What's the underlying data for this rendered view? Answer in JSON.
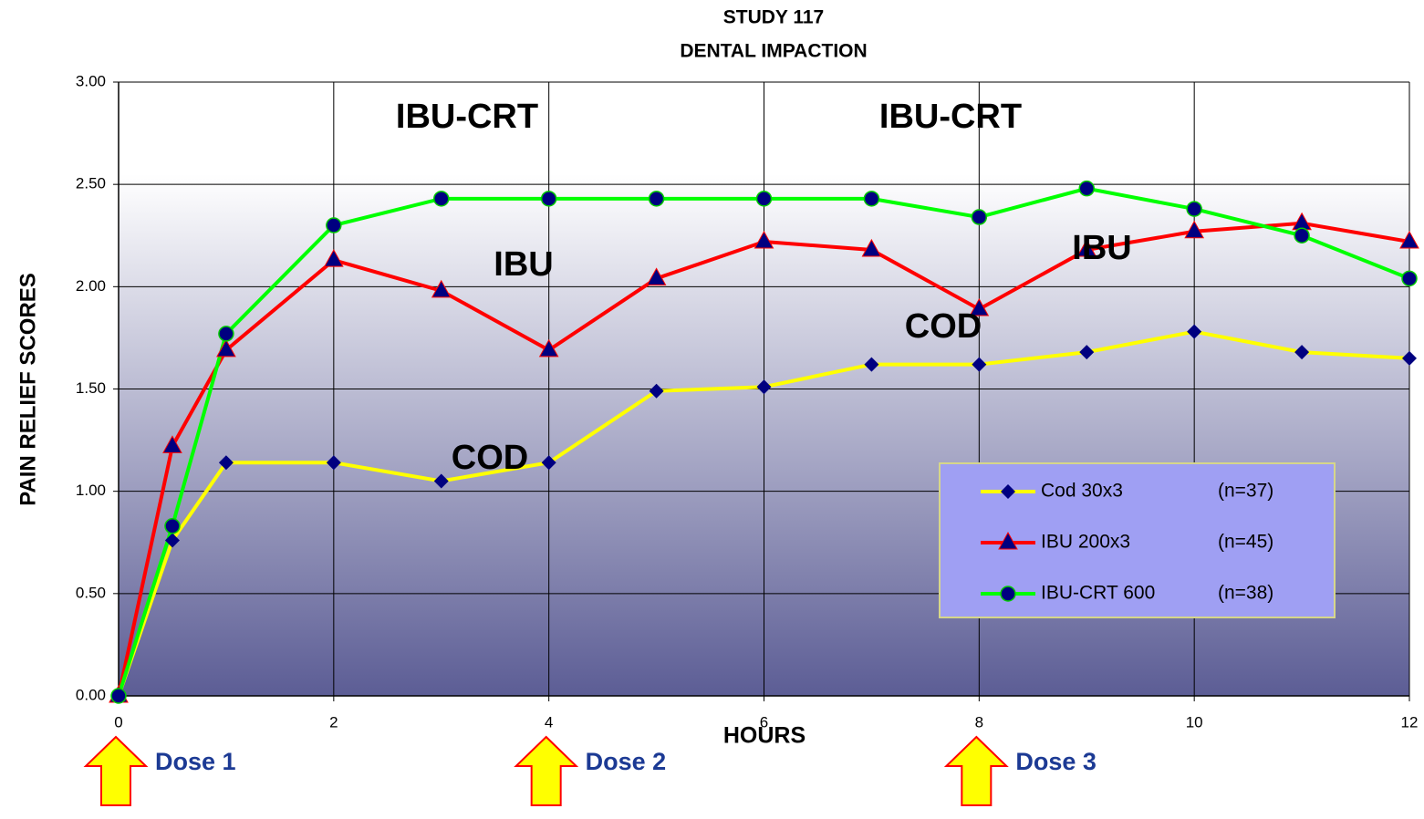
{
  "chart_data": {
    "type": "line",
    "title": "STUDY 117",
    "subtitle": "DENTAL IMPACTION",
    "x_label": "HOURS",
    "y_label": "PAIN RELIEF SCORES",
    "x": [
      0,
      0.5,
      1,
      2,
      3,
      4,
      5,
      6,
      7,
      8,
      9,
      10,
      11,
      12
    ],
    "series": [
      {
        "name": "Cod 30x3",
        "sample": "(n=37)",
        "color": "#ffff00",
        "marker": "diamond",
        "marker_color": "#000080",
        "values": [
          0,
          0.76,
          1.14,
          1.14,
          1.05,
          1.14,
          1.49,
          1.51,
          1.62,
          1.62,
          1.68,
          1.78,
          1.68,
          1.65
        ]
      },
      {
        "name": "IBU 200x3",
        "sample": "(n=45)",
        "color": "#ff0000",
        "marker": "triangle",
        "marker_color": "#000080",
        "values": [
          0,
          1.22,
          1.69,
          2.13,
          1.98,
          1.69,
          2.04,
          2.22,
          2.18,
          1.89,
          2.18,
          2.27,
          2.31,
          2.22
        ]
      },
      {
        "name": "IBU-CRT 600",
        "sample": "(n=38)",
        "color": "#00ff00",
        "marker": "circle",
        "marker_color": "#000080",
        "values": [
          0,
          0.83,
          1.77,
          2.3,
          2.43,
          2.43,
          2.43,
          2.43,
          2.43,
          2.34,
          2.48,
          2.38,
          2.25,
          2.04
        ]
      }
    ],
    "xlim": [
      0,
      12
    ],
    "xticks": [
      0,
      2,
      4,
      6,
      8,
      10,
      12
    ],
    "ylim": [
      0,
      3
    ],
    "yticks": [
      {
        "value": 0,
        "label": "0.00"
      },
      {
        "value": 0.5,
        "label": "0.50"
      },
      {
        "value": 1,
        "label": "1.00"
      },
      {
        "value": 1.5,
        "label": "1.50"
      },
      {
        "value": 2,
        "label": "2.00"
      },
      {
        "value": 2.5,
        "label": "2.50"
      },
      {
        "value": 3,
        "label": "3.00"
      }
    ],
    "grid": true,
    "legend_position": "lower right",
    "annotations": [
      "IBU-CRT",
      "IBU-CRT",
      "IBU",
      "IBU",
      "COD",
      "COD"
    ],
    "dose_markers": [
      {
        "x": 0,
        "label": "Dose 1"
      },
      {
        "x": 4,
        "label": "Dose 2"
      },
      {
        "x": 8,
        "label": "Dose 3"
      }
    ]
  }
}
